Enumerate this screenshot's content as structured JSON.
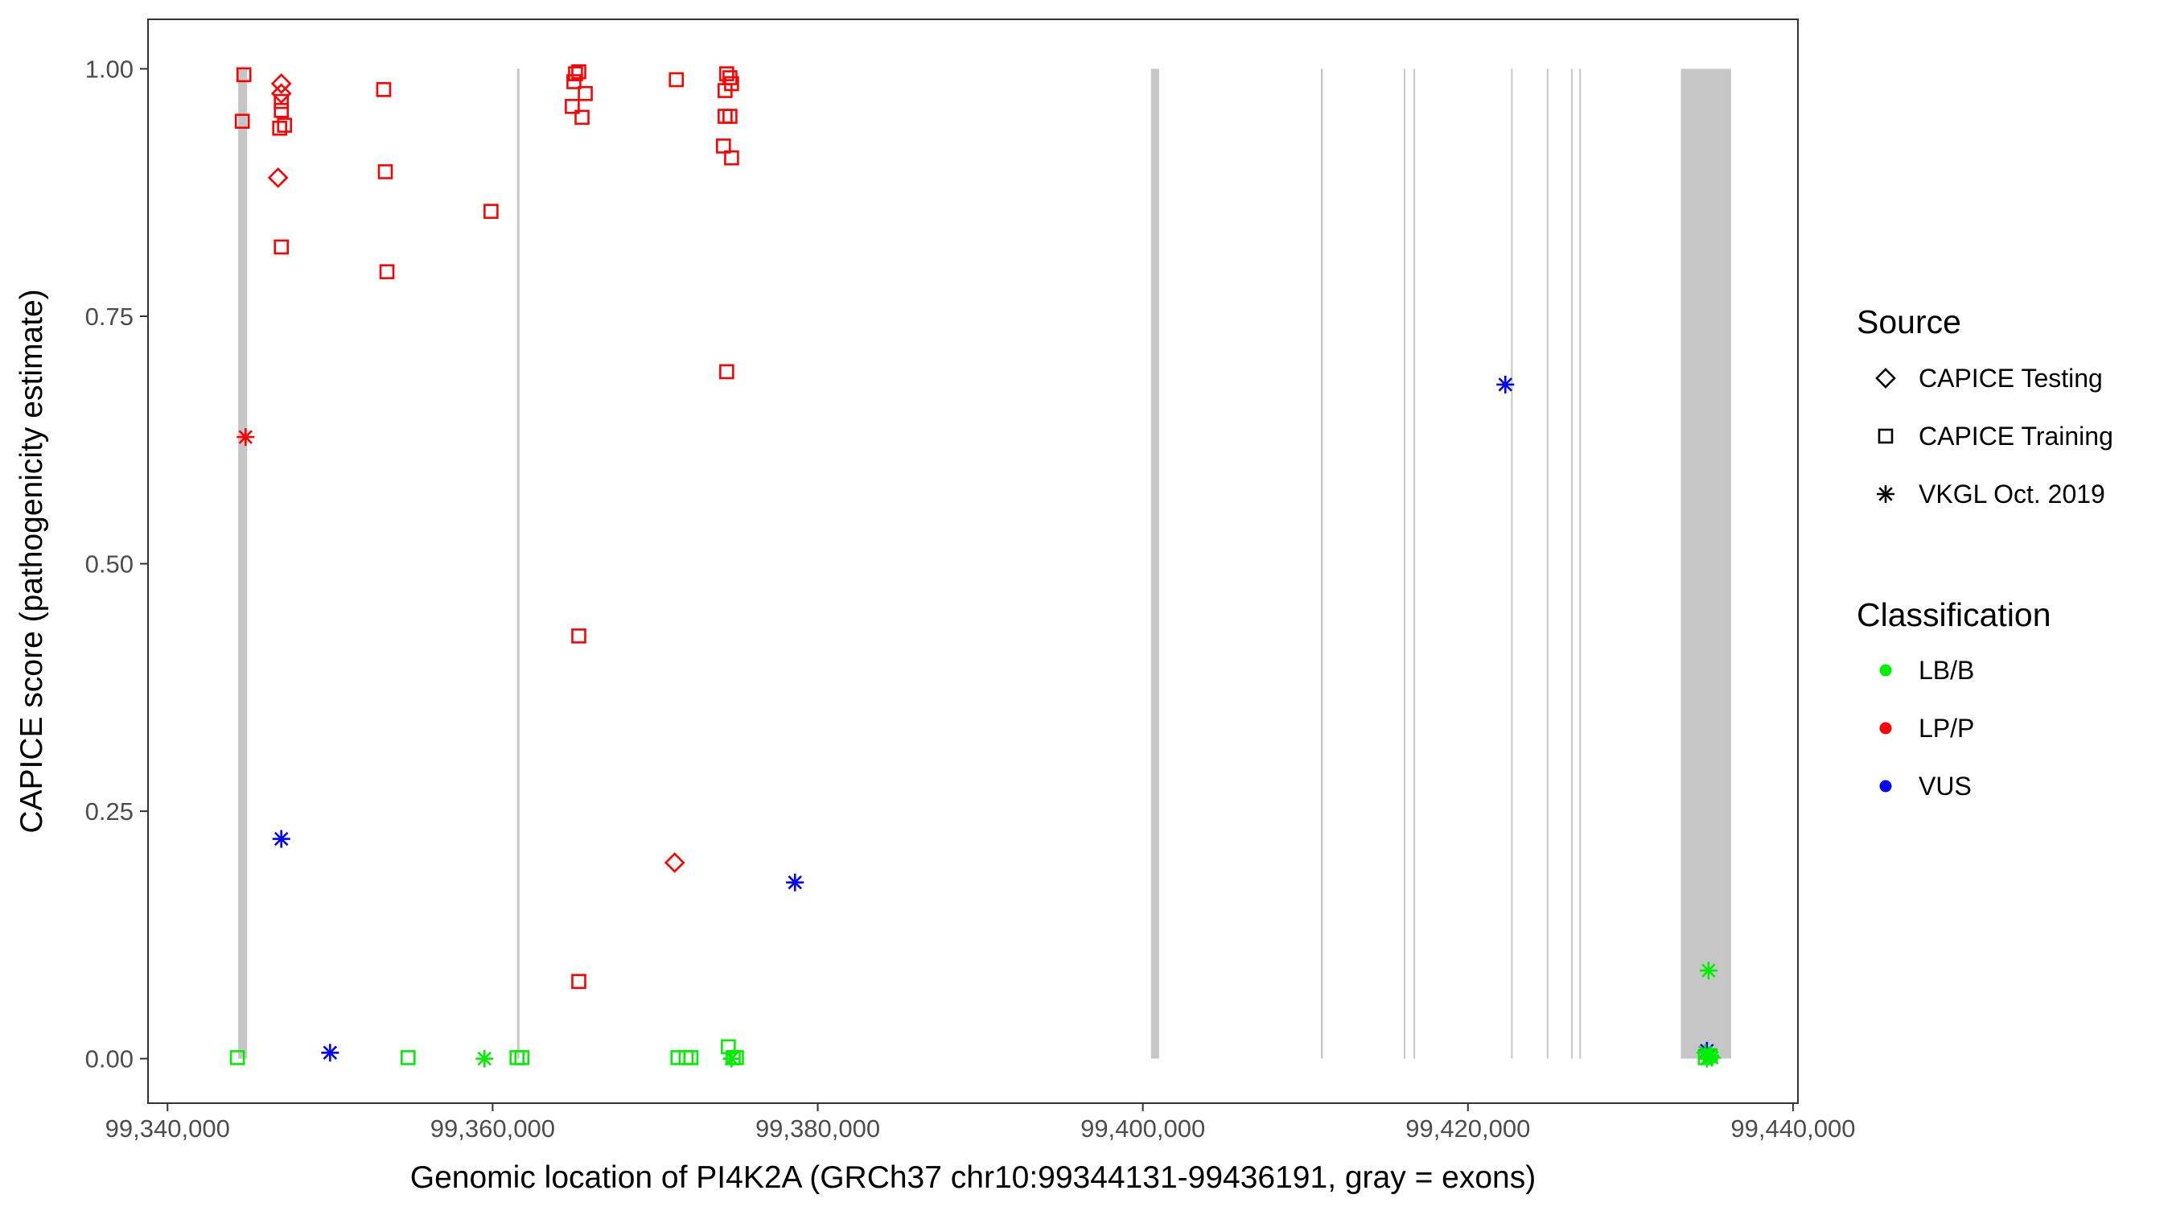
{
  "chart_data": {
    "type": "scatter",
    "title": "",
    "xlabel": "Genomic location of PI4K2A (GRCh37 chr10:99344131-99436191, gray = exons)",
    "ylabel": "CAPICE score (pathogenicity estimate)",
    "xlim": [
      99338800,
      99440300
    ],
    "ylim": [
      -0.045,
      1.05
    ],
    "xticks": [
      {
        "value": 99340000,
        "label": "99,340,000"
      },
      {
        "value": 99360000,
        "label": "99,360,000"
      },
      {
        "value": 99380000,
        "label": "99,380,000"
      },
      {
        "value": 99400000,
        "label": "99,400,000"
      },
      {
        "value": 99420000,
        "label": "99,420,000"
      },
      {
        "value": 99440000,
        "label": "99,440,000"
      }
    ],
    "yticks": [
      {
        "value": 0.0,
        "label": "0.00"
      },
      {
        "value": 0.25,
        "label": "0.25"
      },
      {
        "value": 0.5,
        "label": "0.50"
      },
      {
        "value": 0.75,
        "label": "0.75"
      },
      {
        "value": 1.0,
        "label": "1.00"
      }
    ],
    "grid": false,
    "legend_position": "right",
    "exons": [
      [
        99344350,
        99344900
      ],
      [
        99361500,
        99361650
      ],
      [
        99400500,
        99401000
      ],
      [
        99410950,
        99411070
      ],
      [
        99416050,
        99416150
      ],
      [
        99416650,
        99416750
      ],
      [
        99422650,
        99422730
      ],
      [
        99424850,
        99424950
      ],
      [
        99426350,
        99426450
      ],
      [
        99426850,
        99426950
      ],
      [
        99433100,
        99436191
      ]
    ],
    "exon_color": "#c6c6c6",
    "legends": [
      {
        "title": "Source",
        "entries": [
          {
            "label": "CAPICE Testing",
            "shape": "diamond"
          },
          {
            "label": "CAPICE Training",
            "shape": "square"
          },
          {
            "label": "VKGL Oct. 2019",
            "shape": "asterisk"
          }
        ]
      },
      {
        "title": "Classification",
        "entries": [
          {
            "label": "LB/B",
            "color": "#00ee00"
          },
          {
            "label": "LP/P",
            "color": "#ff0000"
          },
          {
            "label": "VUS",
            "color": "#0000ff"
          }
        ]
      }
    ],
    "series": [
      {
        "source": "CAPICE Training",
        "classification": "LP/P",
        "points": [
          [
            99344700,
            0.994
          ],
          [
            99344600,
            0.947
          ],
          [
            99353300,
            0.979
          ],
          [
            99353400,
            0.896
          ],
          [
            99353500,
            0.795
          ],
          [
            99359900,
            0.856
          ],
          [
            99365100,
            0.995
          ],
          [
            99365300,
            0.997
          ],
          [
            99365000,
            0.987
          ],
          [
            99365700,
            0.975
          ],
          [
            99364900,
            0.962
          ],
          [
            99365500,
            0.951
          ],
          [
            99371300,
            0.989
          ],
          [
            99374400,
            0.995
          ],
          [
            99374600,
            0.991
          ],
          [
            99374700,
            0.985
          ],
          [
            99374300,
            0.978
          ],
          [
            99374300,
            0.952
          ],
          [
            99374600,
            0.952
          ],
          [
            99374200,
            0.922
          ],
          [
            99374700,
            0.91
          ],
          [
            99347000,
            0.82
          ],
          [
            99374400,
            0.694
          ],
          [
            99365300,
            0.427
          ],
          [
            99365300,
            0.078
          ]
        ]
      },
      {
        "source": "CAPICE Testing",
        "classification": "LP/P",
        "points": [
          [
            99347000,
            0.985
          ],
          [
            99347000,
            0.975
          ],
          [
            99346800,
            0.89
          ],
          [
            99371200,
            0.198
          ]
        ]
      },
      {
        "source": "CAPICE Training",
        "classification": "LP/P",
        "points": [
          [
            99347000,
            0.967
          ],
          [
            99347000,
            0.958
          ],
          [
            99347200,
            0.943
          ],
          [
            99346900,
            0.94
          ]
        ]
      },
      {
        "source": "VKGL Oct. 2019",
        "classification": "LP/P",
        "points": [
          [
            99344800,
            0.628
          ]
        ]
      },
      {
        "source": "VKGL Oct. 2019",
        "classification": "VUS",
        "points": [
          [
            99347000,
            0.222
          ],
          [
            99350000,
            0.006
          ],
          [
            99378600,
            0.178
          ],
          [
            99422300,
            0.681
          ],
          [
            99434700,
            0.008
          ]
        ]
      },
      {
        "source": "CAPICE Training",
        "classification": "LB/B",
        "points": [
          [
            99344300,
            0.001
          ],
          [
            99354800,
            0.001
          ],
          [
            99361500,
            0.001
          ],
          [
            99361800,
            0.001
          ],
          [
            99371400,
            0.001
          ],
          [
            99371900,
            0.001
          ],
          [
            99372200,
            0.001
          ],
          [
            99374500,
            0.012
          ],
          [
            99374800,
            0.001
          ],
          [
            99375000,
            0.001
          ],
          [
            99434600,
            0.001
          ],
          [
            99434900,
            0.003
          ]
        ]
      },
      {
        "source": "VKGL Oct. 2019",
        "classification": "LB/B",
        "points": [
          [
            99359500,
            0.0
          ],
          [
            99374700,
            0.0
          ],
          [
            99434800,
            0.089
          ],
          [
            99434600,
            0.006
          ],
          [
            99434900,
            0.003
          ],
          [
            99434700,
            0.0
          ],
          [
            99435000,
            0.001
          ]
        ]
      }
    ]
  }
}
